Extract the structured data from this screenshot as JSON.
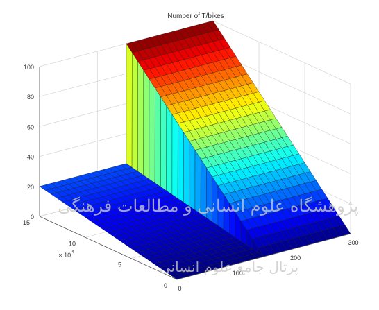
{
  "watermark": {
    "line1": "پژوهشگاه علوم انسانی و مطالعات فرهنگی",
    "line2": "پرتال جامع علوم انسانی"
  },
  "chart_data": {
    "type": "surface",
    "title": "Number of T/bikes",
    "colormap": "jet",
    "grid": true,
    "x_axis": {
      "range": [
        0,
        300
      ],
      "ticks": [
        "0",
        "100",
        "200",
        "300"
      ]
    },
    "y_axis": {
      "range": [
        0,
        150000
      ],
      "ticks": [
        "0",
        "5",
        "10",
        "15"
      ],
      "multiplier_label": "× 10",
      "multiplier_exponent": "4"
    },
    "z_axis": {
      "range": [
        0,
        100
      ],
      "ticks": [
        "0",
        "20",
        "40",
        "60",
        "80",
        "100"
      ]
    },
    "surface": {
      "x_breakpoints": [
        0,
        150,
        300
      ],
      "description": "z is constant along x up to the step, then constant after it",
      "profile_x_lt_150": {
        "y": [
          0,
          150000
        ],
        "z": [
          0,
          20
        ]
      },
      "profile_x_ge_150": {
        "y": [
          0,
          150000
        ],
        "z": [
          0,
          100
        ]
      }
    }
  }
}
